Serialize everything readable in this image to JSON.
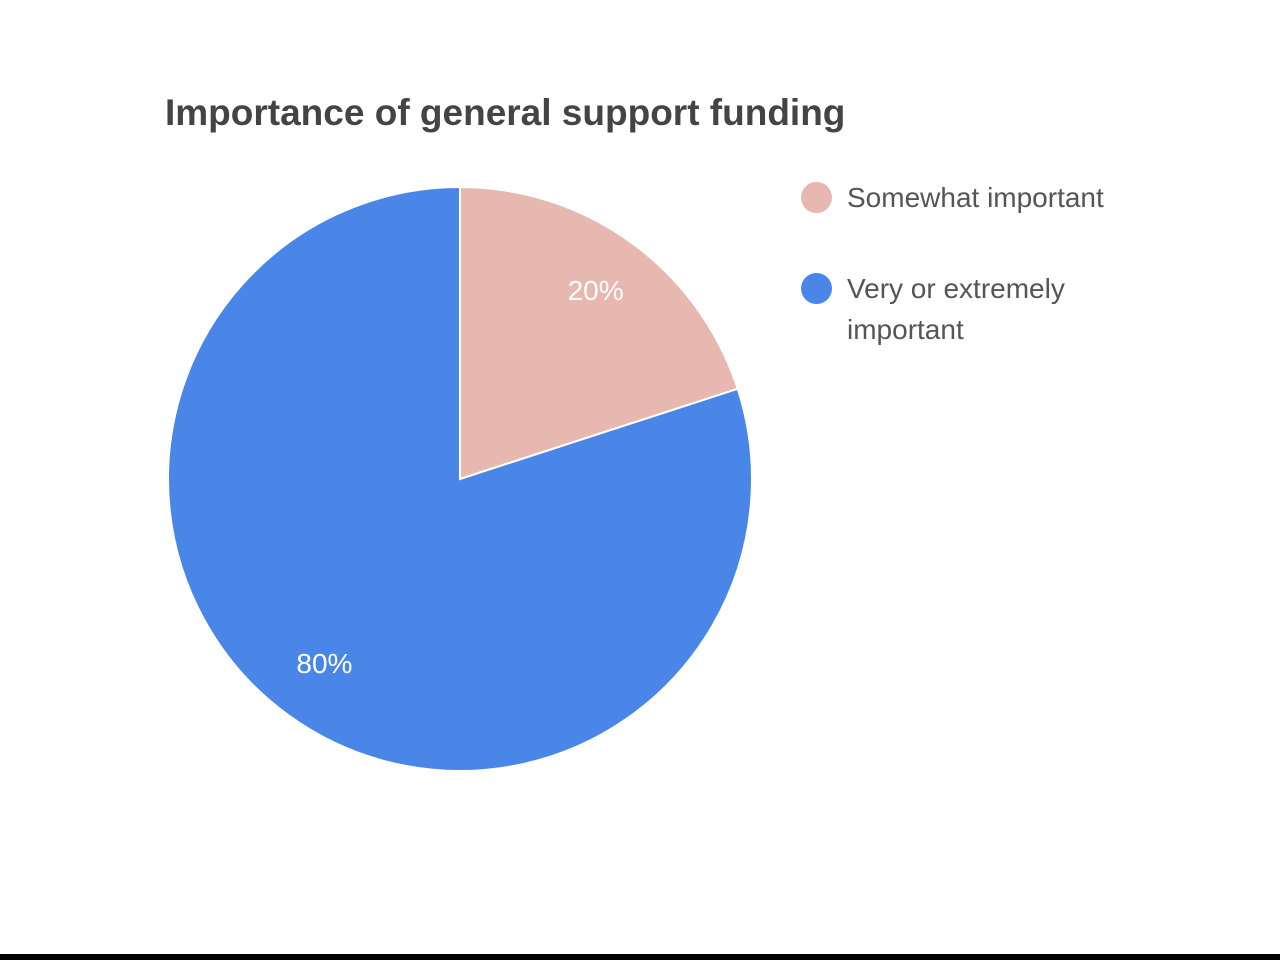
{
  "chart_data": {
    "type": "pie",
    "title": "Importance of general support funding",
    "categories": [
      "Somewhat important",
      "Very or extremely important"
    ],
    "values": [
      20,
      80
    ],
    "value_labels": [
      "20%",
      "80%"
    ],
    "colors": [
      "#e6b8af",
      "#4a86e8"
    ],
    "legend": "right"
  }
}
